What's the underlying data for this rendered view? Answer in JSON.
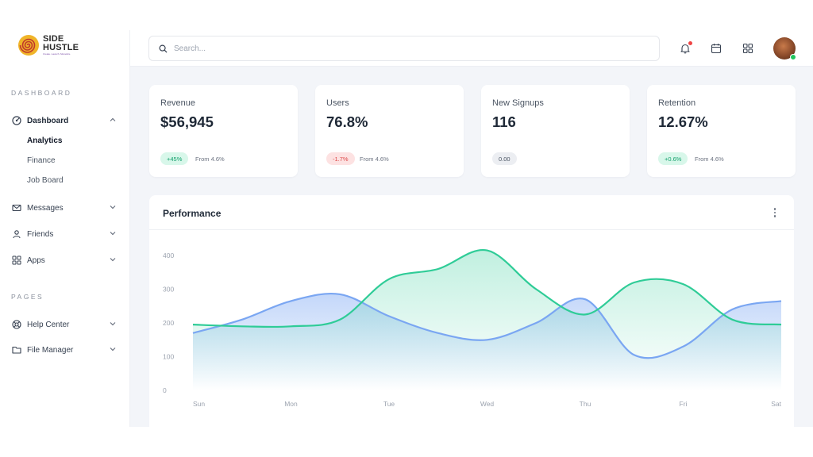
{
  "brand": {
    "line1": "SIDE",
    "line2": "HUSTLE",
    "tagline": "Create. Launch. Monetize.",
    "accent": "#c0392b"
  },
  "sidebar": {
    "section_dashboard": "DASHBOARD",
    "dashboard": {
      "label": "Dashboard",
      "icon": "dashboard-icon",
      "expanded": true,
      "subitems": [
        "Analytics",
        "Finance",
        "Job Board"
      ],
      "active_subitem": "Analytics"
    },
    "messages": {
      "label": "Messages",
      "icon": "mail-icon"
    },
    "friends": {
      "label": "Friends",
      "icon": "user-icon"
    },
    "apps": {
      "label": "Apps",
      "icon": "grid-icon"
    },
    "section_pages": "PAGES",
    "help": {
      "label": "Help Center",
      "icon": "lifebuoy-icon"
    },
    "files": {
      "label": "File Manager",
      "icon": "folder-icon"
    }
  },
  "topbar": {
    "search_placeholder": "Search...",
    "icons": [
      "bell-icon",
      "calendar-icon",
      "apps-grid-icon",
      "avatar"
    ],
    "notification_dot_color": "#ef4444",
    "online_color": "#22c55e"
  },
  "stats": [
    {
      "label": "Revenue",
      "value": "$56,945",
      "badge": "+45%",
      "trend": "up",
      "from": "From 4.6%"
    },
    {
      "label": "Users",
      "value": "76.8%",
      "badge": "-1.7%",
      "trend": "down",
      "from": "From 4.6%"
    },
    {
      "label": "New Signups",
      "value": "116",
      "badge": "0.00",
      "trend": "neutral",
      "from": ""
    },
    {
      "label": "Retention",
      "value": "12.67%",
      "badge": "+0.6%",
      "trend": "up",
      "from": "From 4.6%"
    }
  ],
  "performance": {
    "title": "Performance",
    "menu_icon": "more-vertical-icon"
  },
  "chart_data": {
    "type": "area",
    "title": "Performance",
    "categories": [
      "Sun",
      "Mon",
      "Tue",
      "Wed",
      "Thu",
      "Fri",
      "Sat"
    ],
    "yticks": [
      0,
      100,
      200,
      300,
      400
    ],
    "ylim": [
      0,
      400
    ],
    "grid": false,
    "x": [
      0,
      0.5,
      1,
      1.5,
      2,
      2.5,
      3,
      3.5,
      4,
      4.5,
      5,
      5.5,
      6
    ],
    "series": [
      {
        "color": "#7aa6f2",
        "values": [
          170,
          210,
          265,
          285,
          220,
          170,
          150,
          200,
          270,
          105,
          130,
          240,
          265
        ]
      },
      {
        "color": "#2fcc97",
        "values": [
          195,
          190,
          190,
          210,
          330,
          360,
          415,
          300,
          225,
          320,
          315,
          210,
          195
        ]
      }
    ]
  }
}
